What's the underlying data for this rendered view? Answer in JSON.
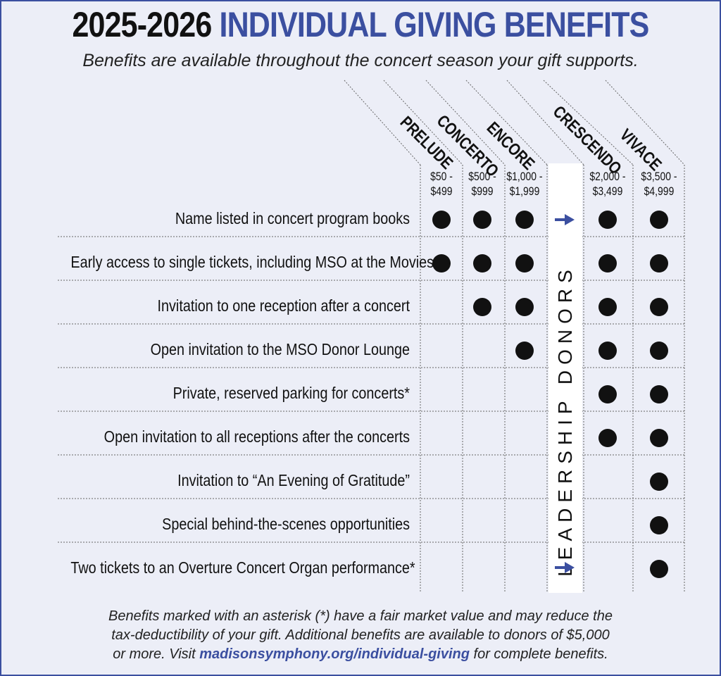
{
  "title": {
    "year": "2025-2026",
    "main": "INDIVIDUAL GIVING BENEFITS"
  },
  "subtitle": "Benefits are available throughout the concert season your gift supports.",
  "levels": [
    {
      "name": "PRELUDE",
      "range_line1": "$50 -",
      "range_line2": "$499"
    },
    {
      "name": "CONCERTO",
      "range_line1": "$500 -",
      "range_line2": "$999"
    },
    {
      "name": "ENCORE",
      "range_line1": "$1,000 -",
      "range_line2": "$1,999"
    },
    {
      "name": "CRESCENDO",
      "range_line1": "$2,000 -",
      "range_line2": "$3,499"
    },
    {
      "name": "VIVACE",
      "range_line1": "$3,500 -",
      "range_line2": "$4,999"
    }
  ],
  "leadership_label": "LEADERSHIP DONORS",
  "benefits": [
    {
      "label": "Name listed in concert program books",
      "included": [
        true,
        true,
        true,
        true,
        true
      ]
    },
    {
      "label": "Early access to single tickets, including MSO at the Movies",
      "included": [
        true,
        true,
        true,
        true,
        true
      ]
    },
    {
      "label": "Invitation to one reception after a concert",
      "included": [
        false,
        true,
        true,
        true,
        true
      ]
    },
    {
      "label": "Open invitation to the MSO Donor Lounge",
      "included": [
        false,
        false,
        true,
        true,
        true
      ]
    },
    {
      "label": "Private, reserved parking for concerts*",
      "included": [
        false,
        false,
        false,
        true,
        true
      ]
    },
    {
      "label": "Open invitation to all receptions after the concerts",
      "included": [
        false,
        false,
        false,
        true,
        true
      ]
    },
    {
      "label": "Invitation to “An Evening of Gratitude”",
      "included": [
        false,
        false,
        false,
        false,
        true
      ]
    },
    {
      "label": "Special behind-the-scenes opportunities",
      "included": [
        false,
        false,
        false,
        false,
        true
      ]
    },
    {
      "label": "Two tickets to an Overture Concert Organ performance*",
      "included": [
        false,
        false,
        false,
        false,
        true
      ]
    }
  ],
  "footer": {
    "line1": "Benefits marked with an asterisk (*) have a fair market value and may reduce the",
    "line2": "tax-deductibility of your gift. Additional benefits are available to donors of $5,000",
    "line3_pre": "or more. Visit ",
    "line3_link": "madisonsymphony.org/individual-giving",
    "line3_post": " for complete benefits."
  },
  "colors": {
    "accent": "#3b4fa0",
    "background": "#eceef7",
    "dot": "#111111"
  }
}
